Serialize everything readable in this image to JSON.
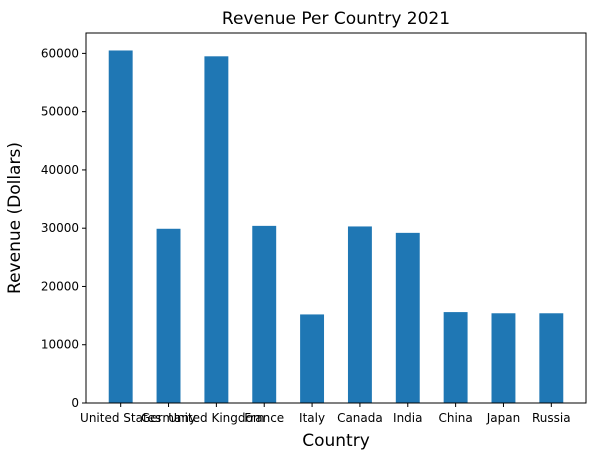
{
  "chart_data": {
    "type": "bar",
    "title": "Revenue Per Country 2021",
    "xlabel": "Country",
    "ylabel": "Revenue (Dollars)",
    "categories": [
      "United States",
      "Germany",
      "United Kingdom",
      "France",
      "Italy",
      "Canada",
      "India",
      "China",
      "Japan",
      "Russia"
    ],
    "values": [
      60500,
      29900,
      59500,
      30400,
      15200,
      30300,
      29200,
      15600,
      15400,
      15400
    ],
    "ylim": [
      0,
      63500
    ],
    "yticks": [
      0,
      10000,
      20000,
      30000,
      40000,
      50000,
      60000
    ],
    "grid": false,
    "bar_color": "#1f77b4"
  }
}
